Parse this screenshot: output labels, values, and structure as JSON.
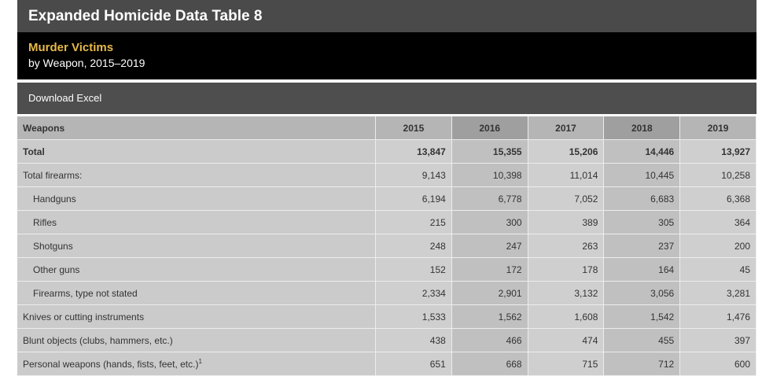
{
  "header": {
    "title": "Expanded Homicide Data Table 8",
    "subtitle": "Murder Victims",
    "description": "by Weapon, 2015–2019"
  },
  "toolbar": {
    "download_label": "Download Excel"
  },
  "table": {
    "columns": [
      "Weapons",
      "2015",
      "2016",
      "2017",
      "2018",
      "2019"
    ],
    "rows": [
      {
        "label": "Total",
        "values": [
          "13,847",
          "15,355",
          "15,206",
          "14,446",
          "13,927"
        ]
      },
      {
        "label": "Total firearms:",
        "values": [
          "9,143",
          "10,398",
          "11,014",
          "10,445",
          "10,258"
        ]
      },
      {
        "label": "Handguns",
        "values": [
          "6,194",
          "6,778",
          "7,052",
          "6,683",
          "6,368"
        ]
      },
      {
        "label": "Rifles",
        "values": [
          "215",
          "300",
          "389",
          "305",
          "364"
        ]
      },
      {
        "label": "Shotguns",
        "values": [
          "248",
          "247",
          "263",
          "237",
          "200"
        ]
      },
      {
        "label": "Other guns",
        "values": [
          "152",
          "172",
          "178",
          "164",
          "45"
        ]
      },
      {
        "label": "Firearms, type not stated",
        "values": [
          "2,334",
          "2,901",
          "3,132",
          "3,056",
          "3,281"
        ]
      },
      {
        "label": "Knives or cutting instruments",
        "values": [
          "1,533",
          "1,562",
          "1,608",
          "1,542",
          "1,476"
        ]
      },
      {
        "label": "Blunt objects (clubs, hammers, etc.)",
        "values": [
          "438",
          "466",
          "474",
          "455",
          "397"
        ]
      },
      {
        "label": "Personal weapons (hands, fists, feet, etc.)",
        "footnote": "1",
        "values": [
          "651",
          "668",
          "715",
          "712",
          "600"
        ]
      }
    ]
  }
}
